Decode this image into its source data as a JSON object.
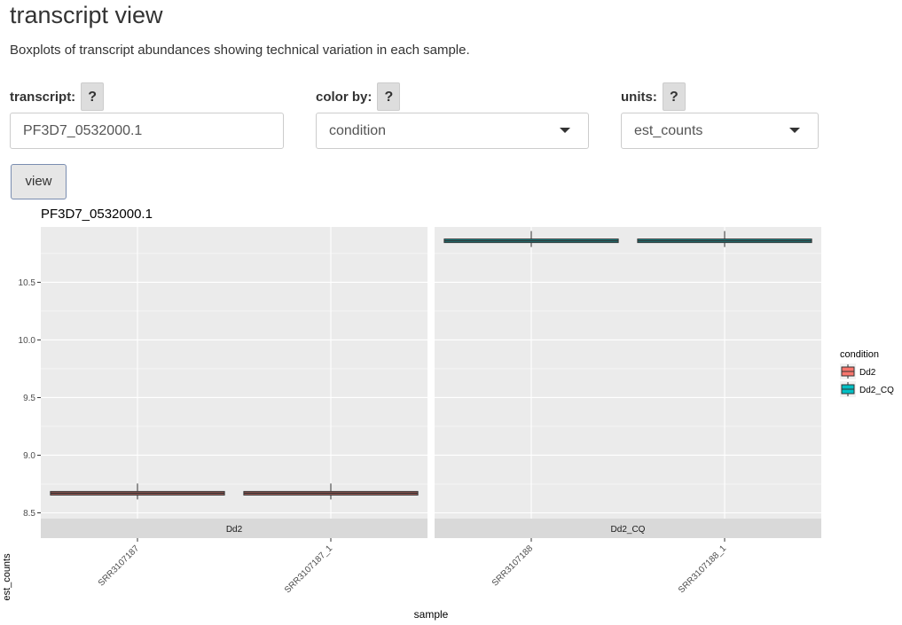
{
  "page": {
    "title": "transcript view",
    "description": "Boxplots of transcript abundances showing technical variation in each sample."
  },
  "controls": {
    "transcript": {
      "label": "transcript:",
      "help": "?",
      "value": "PF3D7_0532000.1"
    },
    "color_by": {
      "label": "color by:",
      "help": "?",
      "value": "condition"
    },
    "units": {
      "label": "units:",
      "help": "?",
      "value": "est_counts"
    },
    "view_button": "view"
  },
  "chart_data": {
    "type": "boxplot",
    "title": "PF3D7_0532000.1",
    "xlabel": "sample",
    "ylabel": "est_counts",
    "ylim": [
      8.45,
      10.98
    ],
    "yticks": [
      8.5,
      9.0,
      9.5,
      10.0,
      10.5
    ],
    "ytick_labels": [
      "8.5",
      "9.0",
      "9.5",
      "10.0",
      "10.5"
    ],
    "grid": true,
    "facets": [
      {
        "label": "Dd2",
        "condition": "Dd2",
        "samples": [
          {
            "name": "SRR3107187",
            "value": 8.67
          },
          {
            "name": "SRR3107187_1",
            "value": 8.67
          }
        ]
      },
      {
        "label": "Dd2_CQ",
        "condition": "Dd2_CQ",
        "samples": [
          {
            "name": "SRR3107188",
            "value": 10.86
          },
          {
            "name": "SRR3107188_1",
            "value": 10.86
          }
        ]
      }
    ],
    "legend": {
      "title": "condition",
      "position": "right",
      "items": [
        {
          "label": "Dd2",
          "color": "#F8766D"
        },
        {
          "label": "Dd2_CQ",
          "color": "#00BFC4"
        }
      ]
    },
    "colors": {
      "panel": "#EBEBEB",
      "strip": "#D9D9D9",
      "grid": "#FFFFFF"
    }
  }
}
